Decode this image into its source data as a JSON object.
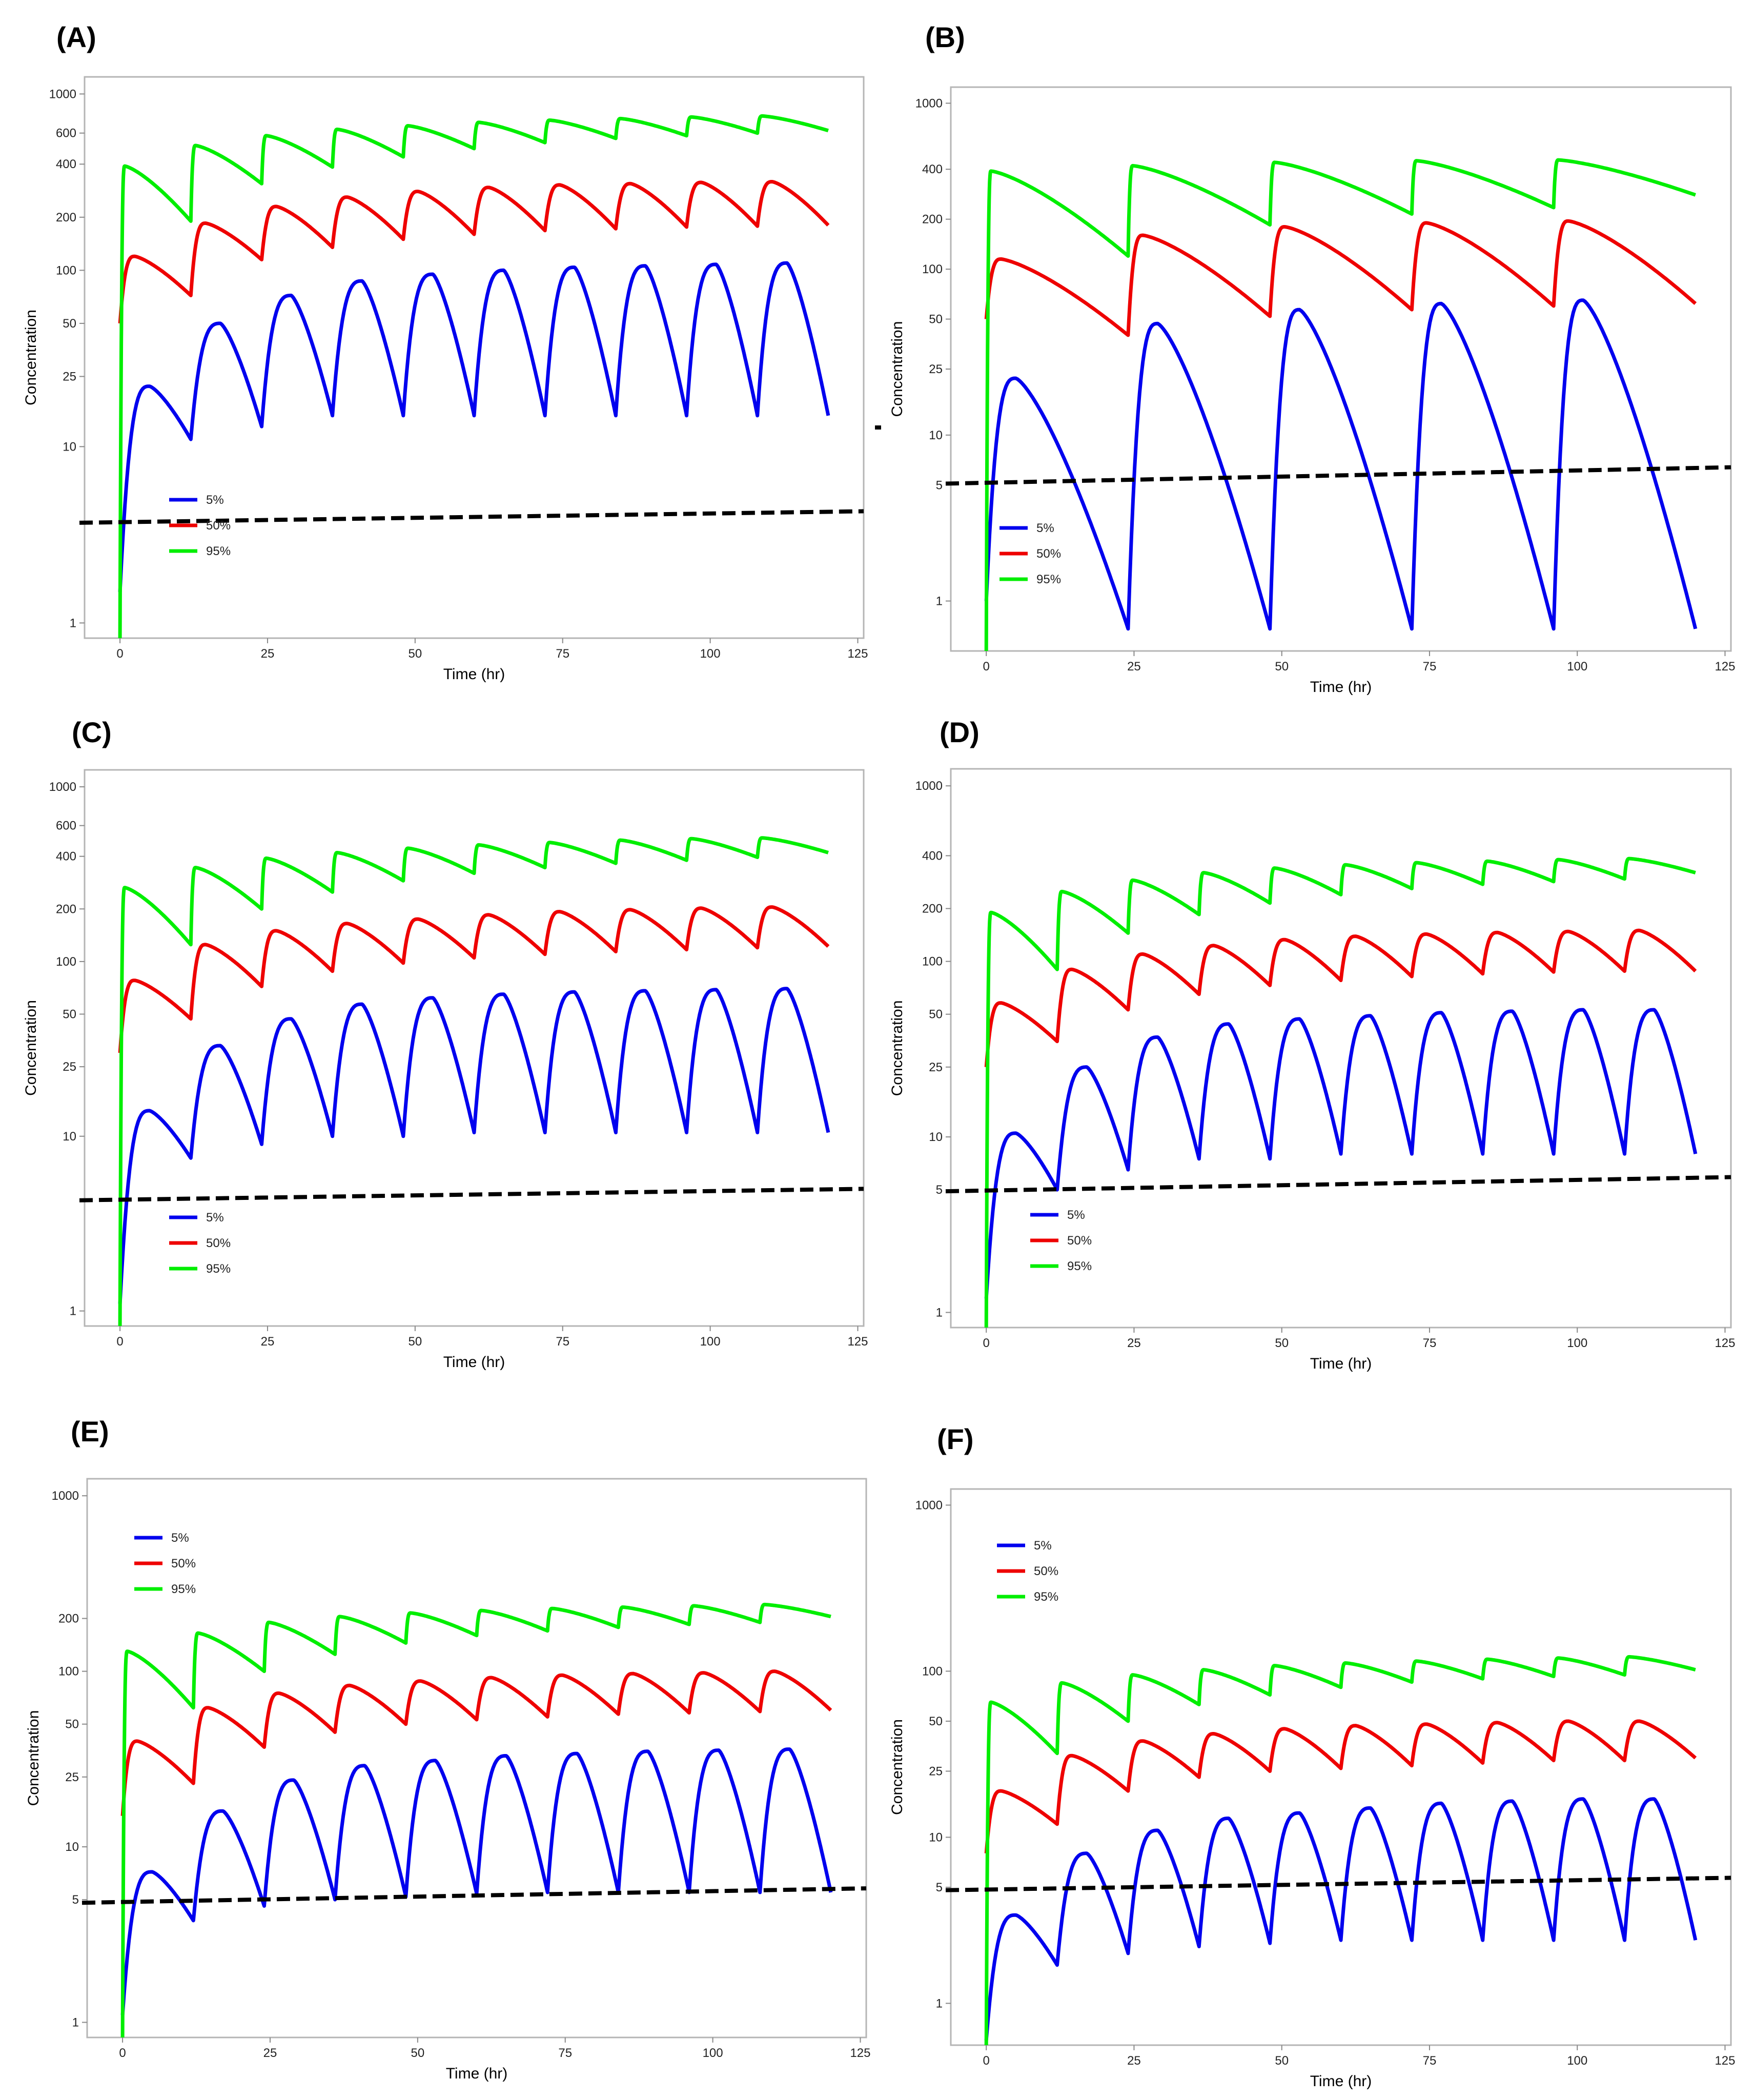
{
  "chart_data": [
    {
      "label": "(A)",
      "type": "line",
      "xlabel": "Time (hr)",
      "ylabel": "Concentration",
      "yscale": "log",
      "xlim": [
        -6,
        126
      ],
      "ylim": [
        0.82,
        1250
      ],
      "xticks": [
        0,
        25,
        50,
        75,
        100,
        125
      ],
      "yticks": [
        1,
        10,
        25,
        50,
        100,
        200,
        400,
        600,
        1000
      ],
      "legend": [
        "5%",
        "50%",
        "95%"
      ],
      "legend_position": "upper-left-below-threshold",
      "interval_hr": 12,
      "n_doses": 10,
      "end_hr": 120,
      "threshold": [
        3.7,
        4.3
      ],
      "series": [
        {
          "name": "5%",
          "color": "#0000EE",
          "start": 1.5,
          "peaks": [
            22,
            50,
            72,
            87,
            95,
            100,
            104,
            106,
            108,
            110
          ],
          "troughs": [
            11,
            13,
            15,
            15,
            15,
            15,
            15,
            15,
            15,
            15
          ],
          "tmax": 5
        },
        {
          "name": "50%",
          "color": "#EE0000",
          "start": 50,
          "peaks": [
            120,
            185,
            230,
            260,
            280,
            295,
            305,
            310,
            315,
            318
          ],
          "troughs": [
            72,
            115,
            135,
            150,
            160,
            168,
            172,
            176,
            178,
            180
          ],
          "tmax": 2.5
        },
        {
          "name": "95%",
          "color": "#00EE00",
          "start": 0.82,
          "peaks": [
            390,
            510,
            580,
            630,
            660,
            690,
            710,
            725,
            740,
            750
          ],
          "troughs": [
            190,
            310,
            385,
            440,
            490,
            530,
            560,
            580,
            600,
            620
          ],
          "tmax": 0.8
        }
      ]
    },
    {
      "label": "(B)",
      "type": "line",
      "xlabel": "Time (hr)",
      "ylabel": "Concentration",
      "yscale": "log",
      "xlim": [
        -6,
        126
      ],
      "ylim": [
        0.5,
        1250
      ],
      "xticks": [
        0,
        25,
        50,
        75,
        100,
        125
      ],
      "yticks": [
        1,
        5,
        10,
        25,
        50,
        100,
        200,
        400,
        1000
      ],
      "legend": [
        "5%",
        "50%",
        "95%"
      ],
      "legend_position": "lower-left",
      "interval_hr": 24,
      "n_doses": 5,
      "end_hr": 120,
      "threshold": [
        5.1,
        6.4
      ],
      "series": [
        {
          "name": "5%",
          "color": "#0000EE",
          "start": 1.0,
          "peaks": [
            22,
            47,
            57,
            62,
            65
          ],
          "troughs": [
            0.68,
            0.68,
            0.68,
            0.68,
            0.68
          ],
          "tmax": 5
        },
        {
          "name": "50%",
          "color": "#EE0000",
          "start": 50,
          "peaks": [
            115,
            160,
            180,
            190,
            195
          ],
          "troughs": [
            40,
            52,
            57,
            60,
            62
          ],
          "tmax": 2.5
        },
        {
          "name": "95%",
          "color": "#00EE00",
          "start": 0.5,
          "peaks": [
            390,
            420,
            440,
            450,
            455
          ],
          "troughs": [
            120,
            185,
            215,
            235,
            280
          ],
          "tmax": 0.8
        }
      ]
    },
    {
      "label": "(C)",
      "type": "line",
      "xlabel": "Time (hr)",
      "ylabel": "Concentration",
      "yscale": "log",
      "xlim": [
        -6,
        126
      ],
      "ylim": [
        0.82,
        1250
      ],
      "xticks": [
        0,
        25,
        50,
        75,
        100,
        125
      ],
      "yticks": [
        1,
        10,
        25,
        50,
        100,
        200,
        400,
        600,
        1000
      ],
      "legend": [
        "5%",
        "50%",
        "95%"
      ],
      "legend_position": "upper-left-below-threshold",
      "interval_hr": 12,
      "n_doses": 10,
      "end_hr": 120,
      "threshold": [
        4.3,
        5.0
      ],
      "series": [
        {
          "name": "5%",
          "color": "#0000EE",
          "start": 1.1,
          "peaks": [
            14,
            33,
            47,
            57,
            62,
            65,
            67,
            68,
            69,
            70
          ],
          "troughs": [
            7.5,
            9,
            10,
            10,
            10.5,
            10.5,
            10.5,
            10.5,
            10.5,
            10.5
          ],
          "tmax": 5
        },
        {
          "name": "50%",
          "color": "#EE0000",
          "start": 30,
          "peaks": [
            78,
            125,
            150,
            165,
            175,
            185,
            193,
            198,
            202,
            205
          ],
          "troughs": [
            47,
            72,
            88,
            98,
            105,
            110,
            114,
            117,
            120,
            122
          ],
          "tmax": 2.5
        },
        {
          "name": "95%",
          "color": "#00EE00",
          "start": 0.82,
          "peaks": [
            265,
            345,
            390,
            420,
            445,
            465,
            480,
            495,
            505,
            510
          ],
          "troughs": [
            125,
            200,
            250,
            290,
            320,
            345,
            365,
            380,
            395,
            420
          ],
          "tmax": 0.8
        }
      ]
    },
    {
      "label": "(D)",
      "type": "line",
      "xlabel": "Time (hr)",
      "ylabel": "Concentration",
      "yscale": "log",
      "xlim": [
        -6,
        126
      ],
      "ylim": [
        0.82,
        1250
      ],
      "xticks": [
        0,
        25,
        50,
        75,
        100,
        125
      ],
      "yticks": [
        1,
        5,
        10,
        25,
        50,
        100,
        200,
        400,
        1000
      ],
      "legend": [
        "5%",
        "50%",
        "95%"
      ],
      "legend_position": "upper-left-below-threshold",
      "interval_hr": 12,
      "n_doses": 10,
      "end_hr": 120,
      "threshold": [
        4.9,
        5.9
      ],
      "series": [
        {
          "name": "5%",
          "color": "#0000EE",
          "start": 1.2,
          "peaks": [
            10.5,
            25,
            37,
            44,
            47,
            49,
            51,
            52,
            53,
            53
          ],
          "troughs": [
            5,
            6.5,
            7.5,
            7.5,
            8,
            8,
            8,
            8,
            8,
            8
          ],
          "tmax": 5
        },
        {
          "name": "50%",
          "color": "#EE0000",
          "start": 25,
          "peaks": [
            58,
            90,
            110,
            123,
            133,
            139,
            143,
            146,
            148,
            150
          ],
          "troughs": [
            35,
            53,
            65,
            73,
            78,
            82,
            85,
            87,
            88,
            88
          ],
          "tmax": 2.5
        },
        {
          "name": "95%",
          "color": "#00EE00",
          "start": 0.82,
          "peaks": [
            190,
            250,
            290,
            320,
            340,
            355,
            365,
            372,
            380,
            385
          ],
          "troughs": [
            90,
            145,
            185,
            215,
            240,
            260,
            275,
            285,
            295,
            320
          ],
          "tmax": 0.8
        }
      ]
    },
    {
      "label": "(E)",
      "type": "line",
      "xlabel": "Time (hr)",
      "ylabel": "Concentration",
      "yscale": "log",
      "xlim": [
        -6,
        126
      ],
      "ylim": [
        0.82,
        1250
      ],
      "xticks": [
        0,
        25,
        50,
        75,
        100,
        125
      ],
      "yticks": [
        1,
        5,
        10,
        25,
        50,
        100,
        200,
        1000
      ],
      "legend": [
        "5%",
        "50%",
        "95%"
      ],
      "legend_position": "top-left",
      "interval_hr": 12,
      "n_doses": 10,
      "end_hr": 120,
      "threshold": [
        4.8,
        5.8
      ],
      "series": [
        {
          "name": "5%",
          "color": "#0000EE",
          "start": 1.1,
          "peaks": [
            7.2,
            16,
            24,
            29,
            31,
            33,
            34,
            35,
            35.5,
            36
          ],
          "troughs": [
            3.8,
            4.6,
            5,
            5.2,
            5.4,
            5.5,
            5.5,
            5.5,
            5.5,
            5.5
          ],
          "tmax": 5
        },
        {
          "name": "50%",
          "color": "#EE0000",
          "start": 15,
          "peaks": [
            40,
            62,
            75,
            83,
            88,
            92,
            95,
            97,
            98,
            100
          ],
          "troughs": [
            23,
            37,
            45,
            50,
            53,
            55,
            57,
            58,
            59,
            60
          ],
          "tmax": 2.5
        },
        {
          "name": "95%",
          "color": "#00EE00",
          "start": 0.82,
          "peaks": [
            130,
            165,
            190,
            205,
            215,
            222,
            228,
            232,
            236,
            240
          ],
          "troughs": [
            62,
            100,
            125,
            145,
            160,
            170,
            178,
            185,
            190,
            205
          ],
          "tmax": 0.8
        }
      ]
    },
    {
      "label": "(F)",
      "type": "line",
      "xlabel": "Time (hr)",
      "ylabel": "Concentration",
      "yscale": "log",
      "xlim": [
        -6,
        126
      ],
      "ylim": [
        0.56,
        1250
      ],
      "xticks": [
        0,
        25,
        50,
        75,
        100,
        125
      ],
      "yticks": [
        1,
        5,
        10,
        25,
        50,
        100,
        1000
      ],
      "legend": [
        "5%",
        "50%",
        "95%"
      ],
      "legend_position": "top-left",
      "interval_hr": 12,
      "n_doses": 10,
      "end_hr": 120,
      "threshold": [
        4.8,
        5.7
      ],
      "series": [
        {
          "name": "5%",
          "color": "#0000EE",
          "start": 0.6,
          "peaks": [
            3.4,
            8,
            11,
            13,
            14,
            15,
            16,
            16.5,
            17,
            17
          ],
          "troughs": [
            1.7,
            2,
            2.2,
            2.3,
            2.4,
            2.4,
            2.4,
            2.4,
            2.4,
            2.4
          ],
          "tmax": 5
        },
        {
          "name": "50%",
          "color": "#EE0000",
          "start": 8,
          "peaks": [
            19,
            31,
            38,
            42,
            45,
            47,
            48,
            49,
            50,
            50
          ],
          "troughs": [
            12,
            19,
            23,
            25,
            26,
            27,
            28,
            29,
            29,
            30
          ],
          "tmax": 2.5
        },
        {
          "name": "95%",
          "color": "#00EE00",
          "start": 0.56,
          "peaks": [
            65,
            85,
            95,
            102,
            108,
            112,
            115,
            118,
            120,
            122
          ],
          "troughs": [
            32,
            50,
            63,
            72,
            80,
            86,
            90,
            93,
            95,
            102
          ],
          "tmax": 0.8
        }
      ]
    }
  ]
}
